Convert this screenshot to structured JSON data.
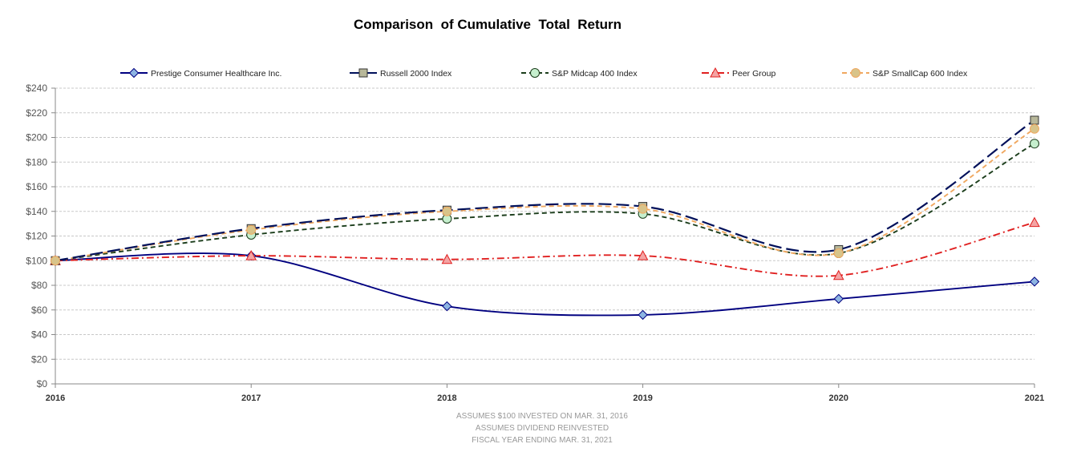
{
  "chart_data": {
    "type": "line",
    "title": "Comparison  of Cumulative  Total  Return",
    "categories": [
      "2016",
      "2017",
      "2018",
      "2019",
      "2020",
      "2021"
    ],
    "y_ticks": [
      "$0",
      "$20",
      "$40",
      "$60",
      "$80",
      "$100",
      "$120",
      "$140",
      "$160",
      "$180",
      "$200",
      "$220",
      "$240"
    ],
    "ylim": [
      0,
      240
    ],
    "ytick_step": 20,
    "grid": true,
    "legend_position": "top",
    "series": [
      {
        "name": "Prestige Consumer Healthcare Inc.",
        "values": [
          100,
          104,
          63,
          56,
          69,
          83
        ],
        "color": "#000080",
        "marker": "diamond",
        "marker_fill": "#8db4e2",
        "dash": "solid"
      },
      {
        "name": "Russell 2000 Index",
        "values": [
          100,
          126,
          141,
          144,
          109,
          214
        ],
        "color": "#00105a",
        "marker": "square",
        "marker_fill": "#b8b89a",
        "dash": "long-dash"
      },
      {
        "name": "S&P Midcap 400 Index",
        "values": [
          100,
          121,
          134,
          138,
          106,
          195
        ],
        "color": "#1b3d1b",
        "marker": "circle",
        "marker_fill": "#c6efce",
        "dash": "dash"
      },
      {
        "name": "Peer Group",
        "values": [
          100,
          104,
          101,
          104,
          88,
          131
        ],
        "color": "#e02020",
        "marker": "triangle",
        "marker_fill": "#f4a4a4",
        "dash": "dash-dot"
      },
      {
        "name": "S&P SmallCap 600 Index",
        "values": [
          100,
          125,
          140,
          142,
          106,
          207
        ],
        "color": "#f0a860",
        "marker": "circle",
        "marker_fill": "#d8c48a",
        "dash": "dash"
      }
    ]
  },
  "footnotes": [
    "ASSUMES $100 INVESTED ON MAR. 31, 2016",
    "ASSUMES DIVIDEND REINVESTED",
    "FISCAL YEAR ENDING MAR. 31, 2021"
  ]
}
